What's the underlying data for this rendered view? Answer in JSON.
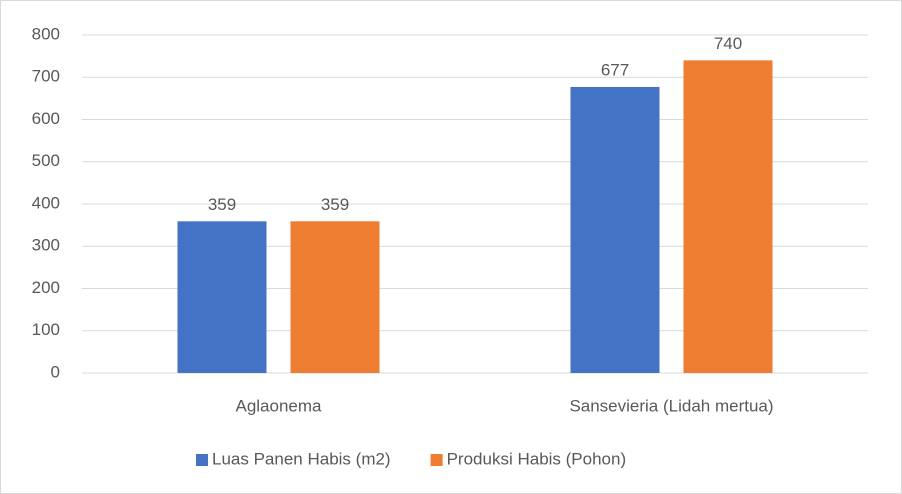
{
  "chart_data": {
    "type": "bar",
    "categories": [
      "Aglaonema",
      "Sansevieria (Lidah mertua)"
    ],
    "series": [
      {
        "name": "Luas Panen Habis (m2)",
        "color": "#4472c4",
        "values": [
          359,
          677
        ]
      },
      {
        "name": "Produksi Habis (Pohon)",
        "color": "#ed7d31",
        "values": [
          359,
          740
        ]
      }
    ],
    "ylim": [
      0,
      800
    ],
    "yticks": [
      0,
      100,
      200,
      300,
      400,
      500,
      600,
      700,
      800
    ],
    "grid": true,
    "legend": "bottom"
  }
}
